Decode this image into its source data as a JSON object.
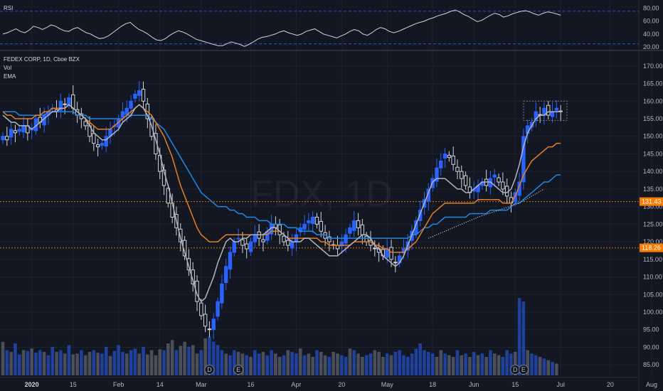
{
  "rsi_panel": {
    "label": "RSI",
    "ticks": [
      "80.00",
      "60.00",
      "40.00",
      "20.00"
    ],
    "tick_values": [
      80,
      60,
      40,
      20
    ],
    "ylim": [
      18,
      88
    ],
    "upper_band": 75,
    "lower_band": 25,
    "values": [
      40,
      42,
      45,
      48,
      44,
      42,
      46,
      52,
      50,
      47,
      50,
      54,
      52,
      48,
      45,
      44,
      48,
      50,
      46,
      42,
      40,
      36,
      33,
      34,
      37,
      42,
      47,
      52,
      56,
      58,
      52,
      47,
      44,
      40,
      35,
      31,
      30,
      33,
      38,
      42,
      45,
      43,
      40,
      36,
      32,
      30,
      28,
      26,
      24,
      22,
      22,
      25,
      28,
      26,
      24,
      21,
      24,
      28,
      32,
      35,
      36,
      38,
      40,
      43,
      45,
      42,
      40,
      38,
      40,
      44,
      46,
      48,
      44,
      40,
      38,
      36,
      34,
      37,
      40,
      44,
      47,
      45,
      40,
      38,
      42,
      47,
      50,
      48,
      44,
      42,
      44,
      47,
      50,
      53,
      56,
      58,
      60,
      63,
      65,
      68,
      70,
      72,
      75,
      77,
      74,
      70,
      67,
      63,
      59,
      61,
      65,
      69,
      72,
      70,
      66,
      68,
      71,
      73,
      75,
      76,
      74,
      71,
      69,
      72,
      74,
      73,
      71,
      69
    ],
    "colors": {
      "line": "#d1d4dc",
      "band": "#2962ff"
    }
  },
  "price_panel": {
    "legend": [
      "FEDEX CORP, 1D, Cboe BZX",
      "Vol",
      "EMA"
    ],
    "watermark": "FDX, 1D",
    "ticks": [
      "170.00",
      "165.00",
      "160.00",
      "155.00",
      "150.00",
      "145.00",
      "140.00",
      "135.00",
      "130.00",
      "125.00",
      "120.00",
      "115.00",
      "110.00",
      "105.00",
      "100.00",
      "95.00",
      "90.00",
      "85.00"
    ],
    "tick_values": [
      170,
      165,
      160,
      155,
      150,
      145,
      140,
      135,
      130,
      125,
      120,
      115,
      110,
      105,
      100,
      95,
      90,
      85
    ],
    "ylim": [
      82,
      173
    ],
    "price_markers": [
      {
        "value": 131.43,
        "text": "131.43",
        "color": "#f57c00"
      },
      {
        "value": 118.26,
        "text": "118.26",
        "color": "#f57c00"
      }
    ],
    "event_badges": [
      "D",
      "E",
      "D",
      "E"
    ]
  },
  "chart_data": {
    "type": "candlestick",
    "title": "FEDEX CORP, 1D, Cboe BZX",
    "symbol": "FDX",
    "interval": "1D",
    "xaxis_labels": [
      "2020",
      "15",
      "Feb",
      "14",
      "Mar",
      "16",
      "Apr",
      "20",
      "May",
      "18",
      "Jun",
      "15",
      "Jul",
      "20",
      "Aug"
    ],
    "xaxis_bar_index": [
      7,
      17,
      28,
      38,
      48,
      60,
      71,
      82,
      93,
      104,
      114,
      124,
      135,
      147,
      157
    ],
    "candles_close": [
      150,
      149,
      152,
      151,
      152,
      153,
      151,
      152,
      155,
      154,
      156,
      157,
      158,
      157,
      160,
      159,
      161,
      158,
      156,
      155,
      153,
      150,
      148,
      147,
      148,
      150,
      152,
      153,
      155,
      157,
      158,
      160,
      162,
      163,
      160,
      155,
      150,
      145,
      140,
      136,
      131,
      127,
      124,
      120,
      116,
      112,
      108,
      103,
      99,
      96,
      95,
      98,
      103,
      108,
      113,
      117,
      120,
      121,
      119,
      118,
      120,
      122,
      121,
      120,
      123,
      125,
      124,
      122,
      120,
      119,
      120,
      122,
      124,
      125,
      126,
      127,
      125,
      123,
      121,
      120,
      119,
      118,
      120,
      122,
      124,
      126,
      124,
      122,
      120,
      119,
      118,
      117,
      116,
      118,
      115,
      114,
      116,
      118,
      120,
      123,
      126,
      129,
      132,
      135,
      138,
      141,
      143,
      145,
      144,
      142,
      140,
      138,
      136,
      134,
      135,
      136,
      137,
      136,
      138,
      139,
      137,
      135,
      133,
      131,
      134,
      137,
      150,
      153,
      154,
      157,
      156,
      158,
      156,
      157,
      158,
      157
    ],
    "ema_fast_gray": [
      156,
      155,
      154,
      154,
      153,
      153,
      153,
      152,
      153,
      154,
      155,
      156,
      157,
      157,
      158,
      158,
      159,
      158,
      157,
      156,
      155,
      153,
      151,
      150,
      149,
      149,
      150,
      151,
      152,
      154,
      155,
      156,
      158,
      159,
      158,
      156,
      153,
      149,
      145,
      140,
      136,
      131,
      126,
      121,
      117,
      113,
      109,
      105,
      103,
      104,
      107,
      110,
      114,
      117,
      120,
      121,
      120,
      120,
      121,
      121,
      122,
      122,
      122,
      122,
      123,
      124,
      124,
      123,
      122,
      121,
      120,
      120,
      120,
      121,
      121,
      120,
      119,
      118,
      117,
      116,
      116,
      116,
      117,
      118,
      119,
      120,
      121,
      122,
      122,
      121,
      119,
      118,
      116,
      115,
      114,
      113,
      114,
      116,
      119,
      122,
      125,
      128,
      131,
      134,
      137,
      138,
      138,
      138,
      137,
      136,
      135,
      135,
      134,
      134,
      135,
      136,
      137,
      137,
      137,
      136,
      135,
      134,
      134,
      135,
      138,
      142,
      147,
      151,
      153,
      155,
      156,
      156,
      157,
      157,
      157,
      157
    ],
    "ema_mid_orange": [
      157,
      156,
      156,
      155,
      155,
      155,
      155,
      155,
      156,
      156,
      157,
      157,
      158,
      158,
      158,
      158,
      159,
      158,
      157,
      156,
      155,
      154,
      153,
      152,
      152,
      152,
      152,
      153,
      154,
      155,
      156,
      157,
      158,
      159,
      158,
      157,
      156,
      154,
      152,
      150,
      147,
      144,
      140,
      136,
      133,
      130,
      127,
      124,
      122,
      121,
      120,
      120,
      120,
      121,
      122,
      122,
      122,
      122,
      122,
      122,
      122,
      122,
      122,
      122,
      122,
      123,
      123,
      123,
      122,
      121,
      121,
      121,
      121,
      121,
      121,
      121,
      121,
      120,
      120,
      119,
      119,
      119,
      119,
      119,
      119,
      120,
      120,
      120,
      120,
      120,
      119,
      119,
      118,
      118,
      117,
      117,
      117,
      117,
      118,
      119,
      120,
      122,
      124,
      126,
      128,
      129,
      130,
      131,
      131,
      131,
      131,
      131,
      131,
      131,
      131,
      132,
      132,
      132,
      132,
      132,
      132,
      131,
      131,
      131,
      133,
      136,
      139,
      141,
      143,
      144,
      145,
      146,
      147,
      147,
      148,
      148
    ],
    "ema_slow_blue": [
      157,
      157,
      157,
      157,
      156,
      156,
      156,
      156,
      156,
      156,
      156,
      157,
      157,
      157,
      157,
      157,
      157,
      157,
      156,
      156,
      156,
      155,
      155,
      155,
      155,
      155,
      155,
      155,
      155,
      155,
      156,
      156,
      156,
      156,
      156,
      156,
      155,
      154,
      153,
      152,
      150,
      148,
      146,
      144,
      142,
      140,
      138,
      136,
      134,
      133,
      132,
      131,
      130,
      130,
      130,
      129,
      129,
      128,
      128,
      127,
      127,
      127,
      126,
      126,
      126,
      125,
      125,
      125,
      125,
      124,
      124,
      124,
      123,
      123,
      123,
      123,
      122,
      122,
      122,
      121,
      121,
      121,
      121,
      121,
      121,
      121,
      121,
      121,
      121,
      121,
      121,
      121,
      121,
      121,
      121,
      121,
      121,
      121,
      121,
      122,
      122,
      123,
      124,
      124,
      125,
      125,
      126,
      127,
      127,
      127,
      127,
      127,
      127,
      128,
      128,
      128,
      128,
      128,
      129,
      129,
      129,
      129,
      129,
      130,
      131,
      131,
      132,
      133,
      134,
      135,
      136,
      137,
      137,
      138,
      139,
      139
    ],
    "volume": [
      40,
      30,
      28,
      38,
      25,
      30,
      29,
      32,
      27,
      30,
      28,
      24,
      34,
      28,
      30,
      26,
      36,
      25,
      26,
      30,
      24,
      28,
      30,
      27,
      26,
      34,
      23,
      29,
      36,
      28,
      26,
      30,
      32,
      26,
      34,
      25,
      30,
      24,
      31,
      30,
      38,
      42,
      30,
      35,
      40,
      34,
      36,
      26,
      30,
      44,
      46,
      40,
      36,
      30,
      26,
      24,
      30,
      28,
      26,
      24,
      22,
      30,
      26,
      28,
      24,
      30,
      26,
      22,
      24,
      30,
      28,
      26,
      32,
      24,
      26,
      22,
      30,
      28,
      24,
      22,
      28,
      26,
      24,
      22,
      32,
      30,
      26,
      22,
      24,
      26,
      30,
      28,
      22,
      26,
      24,
      28,
      30,
      24,
      22,
      26,
      32,
      38,
      30,
      28,
      26,
      22,
      30,
      26,
      24,
      22,
      30,
      24,
      26,
      22,
      28,
      24,
      26,
      22,
      30,
      26,
      24,
      22,
      30,
      26,
      28,
      92,
      88,
      30,
      26,
      24,
      22,
      20,
      18,
      16,
      14
    ],
    "volume_up": [
      false,
      true,
      false,
      true,
      true,
      false,
      true,
      false,
      true,
      true,
      false,
      true,
      true,
      false,
      true,
      false,
      true,
      false,
      false,
      true,
      false,
      false,
      true,
      false,
      true,
      true,
      false,
      true,
      true,
      true,
      false,
      true,
      true,
      false,
      true,
      false,
      false,
      false,
      false,
      true,
      false,
      false,
      true,
      false,
      false,
      true,
      false,
      false,
      true,
      false,
      true,
      true,
      true,
      true,
      false,
      true,
      true,
      false,
      false,
      true,
      false,
      true,
      true,
      false,
      true,
      true,
      false,
      false,
      true,
      false,
      true,
      true,
      false,
      true,
      false,
      false,
      true,
      false,
      false,
      true,
      false,
      false,
      true,
      true,
      false,
      true,
      false,
      false,
      true,
      true,
      false,
      false,
      false,
      true,
      false,
      true,
      true,
      true,
      true,
      true,
      true,
      true,
      true,
      true,
      true,
      false,
      false,
      true,
      false,
      false,
      true,
      false,
      true,
      false,
      true,
      false,
      true,
      false,
      true,
      false,
      false,
      true,
      true,
      true,
      false,
      true,
      true,
      false,
      true,
      true,
      false,
      true,
      false,
      true,
      false
    ],
    "price_markers": [
      131.43,
      118.26
    ],
    "ylim": [
      82,
      173
    ],
    "rsi_ylim": [
      18,
      88
    ]
  }
}
